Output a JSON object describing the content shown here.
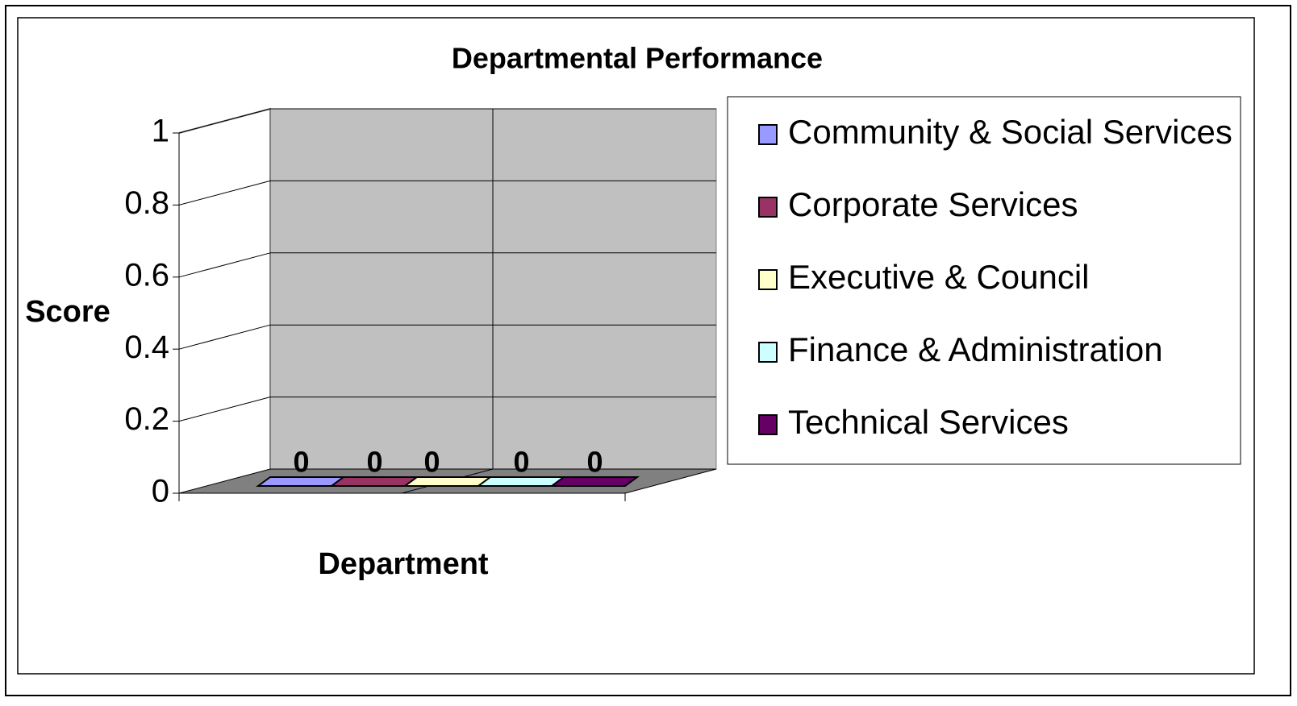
{
  "chart_data": {
    "type": "bar3d",
    "title": "Departmental Performance",
    "x_label": "Department",
    "y_label": "Score",
    "categories": [
      null
    ],
    "series": [
      {
        "name": "Community & Social Services",
        "color": "#9999ff",
        "values": [
          0
        ]
      },
      {
        "name": "Corporate Services",
        "color": "#993366",
        "values": [
          0
        ]
      },
      {
        "name": "Executive & Council",
        "color": "#ffffcc",
        "values": [
          0
        ]
      },
      {
        "name": "Finance & Administration",
        "color": "#ccffff",
        "values": [
          0
        ]
      },
      {
        "name": "Technical Services",
        "color": "#660066",
        "values": [
          0
        ]
      }
    ],
    "ylim": [
      0,
      1
    ],
    "yticks": [
      0,
      0.2,
      0.4,
      0.6,
      0.8,
      1
    ],
    "grid": true,
    "legend": "right"
  }
}
